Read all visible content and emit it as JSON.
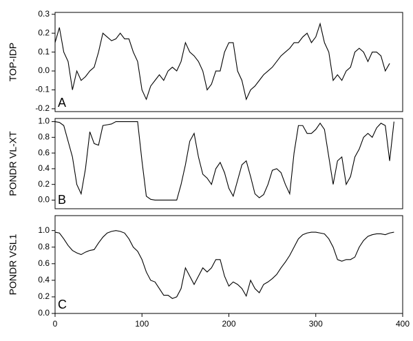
{
  "chart_data": [
    {
      "type": "line",
      "ylabel": "TOP-IDP",
      "annotation": "A",
      "color": "#000000",
      "xlim": [
        0,
        400
      ],
      "ylim": [
        -0.215,
        0.31
      ],
      "yticks": [
        -0.2,
        -0.1,
        {
          "value": 0,
          "label": "0.0"
        },
        0.1,
        0.2,
        0.3
      ],
      "x": [
        0,
        5,
        10,
        15,
        20,
        25,
        30,
        35,
        40,
        45,
        50,
        55,
        60,
        65,
        70,
        75,
        80,
        85,
        90,
        95,
        100,
        105,
        110,
        115,
        120,
        125,
        130,
        135,
        140,
        145,
        150,
        155,
        160,
        165,
        170,
        175,
        180,
        185,
        190,
        195,
        200,
        205,
        210,
        215,
        220,
        225,
        230,
        235,
        240,
        245,
        250,
        255,
        260,
        265,
        270,
        275,
        280,
        285,
        290,
        295,
        300,
        305,
        310,
        315,
        320,
        325,
        330,
        335,
        340,
        345,
        350,
        355,
        360,
        365,
        370,
        375,
        380,
        385
      ],
      "values": [
        0.15,
        0.23,
        0.1,
        0.05,
        -0.1,
        0,
        -0.05,
        -0.03,
        0,
        0.02,
        0.1,
        0.2,
        0.18,
        0.16,
        0.17,
        0.2,
        0.17,
        0.17,
        0.1,
        0.05,
        -0.1,
        -0.15,
        -0.08,
        -0.05,
        -0.02,
        -0.05,
        0,
        0.02,
        0,
        0.05,
        0.15,
        0.1,
        0.08,
        0.05,
        0,
        -0.1,
        -0.07,
        0,
        0,
        0.1,
        0.15,
        0.15,
        0,
        -0.05,
        -0.15,
        -0.1,
        -0.08,
        -0.05,
        -0.02,
        0,
        0.02,
        0.05,
        0.08,
        0.1,
        0.12,
        0.15,
        0.15,
        0.18,
        0.2,
        0.15,
        0.18,
        0.25,
        0.15,
        0.1,
        -0.05,
        -0.02,
        -0.05,
        0,
        0.02,
        0.1,
        0.12,
        0.1,
        0.05,
        0.1,
        0.1,
        0.08,
        0,
        0.04
      ]
    },
    {
      "type": "line",
      "ylabel": "PONDR VL-XT",
      "annotation": "B",
      "color": "#000000",
      "xlim": [
        0,
        400
      ],
      "ylim": [
        -0.11,
        1.04
      ],
      "yticks": [
        {
          "value": 0,
          "label": "0.0"
        },
        0.2,
        0.4,
        0.6,
        0.8,
        {
          "value": 1,
          "label": "1.0"
        }
      ],
      "x": [
        0,
        5,
        10,
        15,
        20,
        25,
        30,
        35,
        40,
        45,
        50,
        55,
        60,
        65,
        70,
        75,
        80,
        85,
        90,
        95,
        100,
        105,
        110,
        115,
        120,
        125,
        130,
        135,
        140,
        145,
        150,
        155,
        160,
        165,
        170,
        175,
        180,
        185,
        190,
        195,
        200,
        205,
        210,
        215,
        220,
        225,
        230,
        235,
        240,
        245,
        250,
        255,
        260,
        265,
        270,
        275,
        280,
        285,
        290,
        295,
        300,
        305,
        310,
        315,
        320,
        325,
        330,
        335,
        340,
        345,
        350,
        355,
        360,
        365,
        370,
        375,
        380,
        385,
        390
      ],
      "values": [
        1.0,
        0.99,
        0.95,
        0.75,
        0.55,
        0.2,
        0.08,
        0.4,
        0.87,
        0.72,
        0.7,
        0.95,
        0.96,
        0.97,
        1.0,
        1.0,
        1.0,
        1.0,
        1.0,
        1.0,
        0.5,
        0.05,
        0.01,
        0,
        0,
        0,
        0,
        0,
        0,
        0.2,
        0.45,
        0.75,
        0.85,
        0.55,
        0.33,
        0.28,
        0.2,
        0.4,
        0.48,
        0.35,
        0.15,
        0.05,
        0.25,
        0.45,
        0.5,
        0.3,
        0.08,
        0.03,
        0.07,
        0.2,
        0.38,
        0.4,
        0.35,
        0.2,
        0.08,
        0.6,
        0.95,
        0.95,
        0.85,
        0.85,
        0.9,
        0.98,
        0.9,
        0.55,
        0.2,
        0.5,
        0.55,
        0.2,
        0.3,
        0.55,
        0.65,
        0.8,
        0.85,
        0.8,
        0.92,
        0.98,
        0.95,
        0.5,
        1.0
      ]
    },
    {
      "type": "line",
      "ylabel": "PONDR VSL1",
      "annotation": "C",
      "color": "#000000",
      "xlim": [
        0,
        400
      ],
      "ylim": [
        0,
        1.18
      ],
      "xticks": [
        0,
        100,
        200,
        300,
        400
      ],
      "yticks": [
        {
          "value": 0,
          "label": "0.0"
        },
        0.2,
        0.4,
        0.6,
        0.8,
        {
          "value": 1,
          "label": "1.0"
        }
      ],
      "x": [
        0,
        5,
        10,
        15,
        20,
        25,
        30,
        35,
        40,
        45,
        50,
        55,
        60,
        65,
        70,
        75,
        80,
        85,
        90,
        95,
        100,
        105,
        110,
        115,
        120,
        125,
        130,
        135,
        140,
        145,
        150,
        155,
        160,
        165,
        170,
        175,
        180,
        185,
        190,
        195,
        200,
        205,
        210,
        215,
        220,
        225,
        230,
        235,
        240,
        245,
        250,
        255,
        260,
        265,
        270,
        275,
        280,
        285,
        290,
        295,
        300,
        305,
        310,
        315,
        320,
        325,
        330,
        335,
        340,
        345,
        350,
        355,
        360,
        365,
        370,
        375,
        380,
        385,
        390
      ],
      "values": [
        0.98,
        0.97,
        0.9,
        0.82,
        0.76,
        0.73,
        0.71,
        0.74,
        0.76,
        0.77,
        0.85,
        0.92,
        0.97,
        0.99,
        1.0,
        0.99,
        0.97,
        0.9,
        0.8,
        0.75,
        0.65,
        0.5,
        0.4,
        0.38,
        0.3,
        0.22,
        0.22,
        0.18,
        0.2,
        0.3,
        0.55,
        0.45,
        0.35,
        0.45,
        0.55,
        0.5,
        0.55,
        0.65,
        0.65,
        0.45,
        0.33,
        0.38,
        0.35,
        0.3,
        0.21,
        0.4,
        0.3,
        0.25,
        0.35,
        0.38,
        0.42,
        0.47,
        0.55,
        0.62,
        0.7,
        0.8,
        0.9,
        0.95,
        0.97,
        0.98,
        0.98,
        0.97,
        0.96,
        0.9,
        0.8,
        0.65,
        0.63,
        0.65,
        0.65,
        0.68,
        0.8,
        0.88,
        0.93,
        0.95,
        0.96,
        0.96,
        0.95,
        0.97,
        0.98
      ]
    }
  ]
}
